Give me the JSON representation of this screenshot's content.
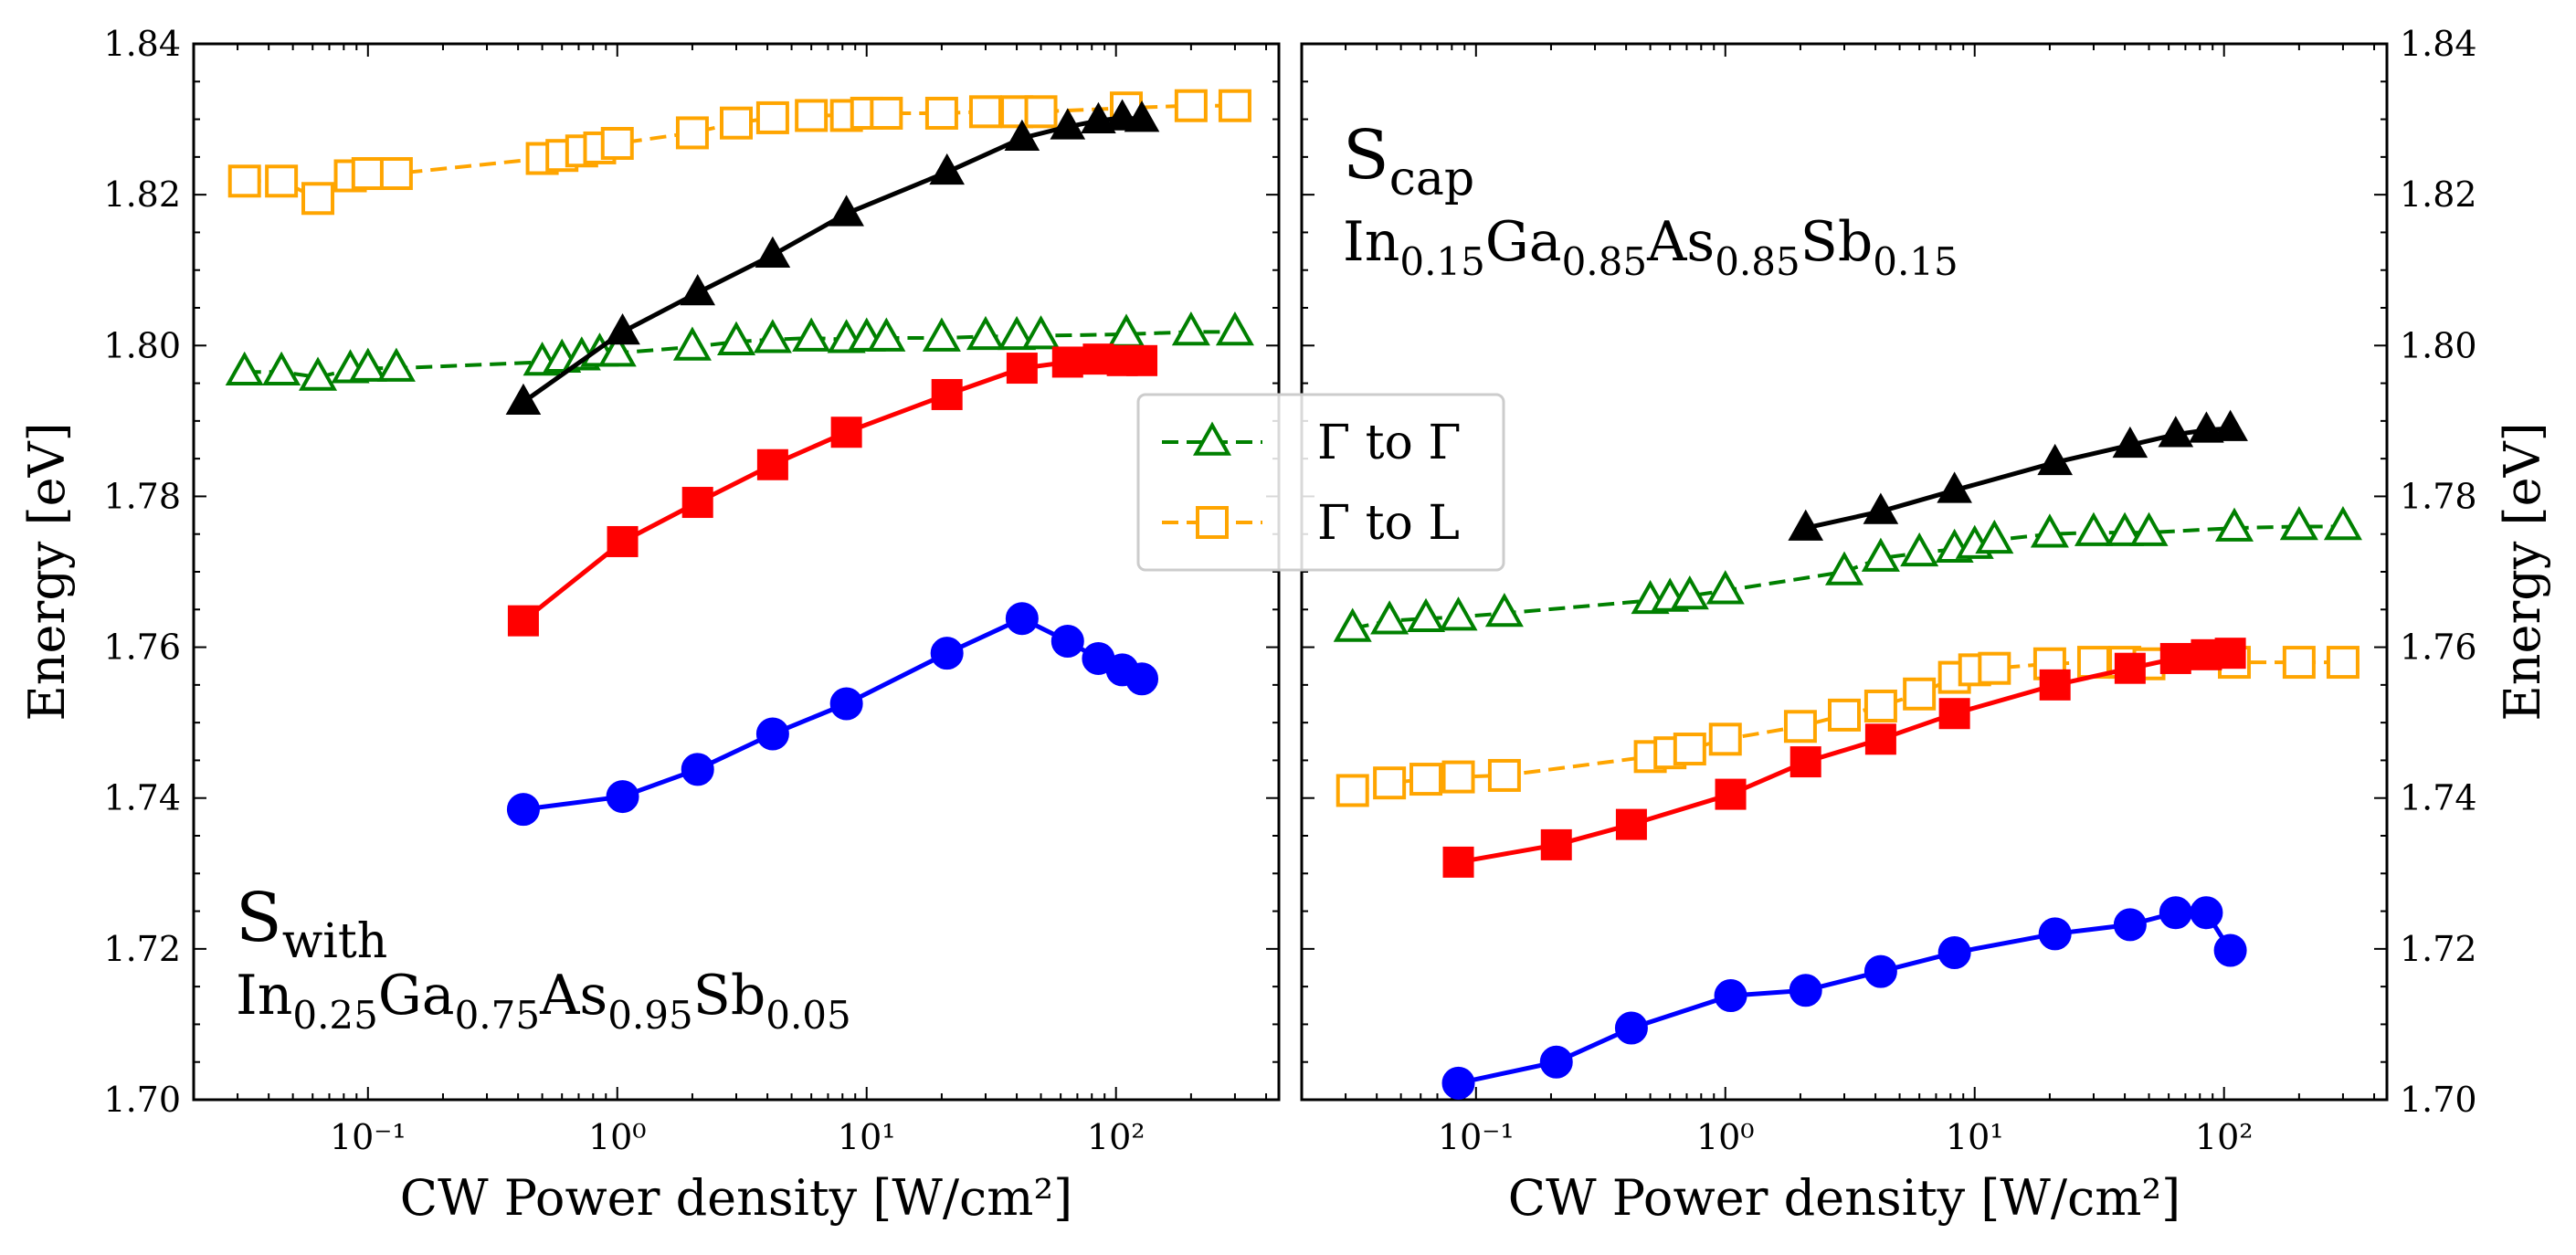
{
  "legend": {
    "entries": [
      {
        "label": "Γ to Γ",
        "color": "#008000",
        "marker": "triangle-open",
        "line": "dashed"
      },
      {
        "label": "Γ to L",
        "color": "#FFA500",
        "marker": "square-open",
        "line": "dashed"
      }
    ],
    "placement": "center"
  },
  "chart_data": [
    {
      "type": "line",
      "xscale": "log",
      "xlabel": "CW Power density [W/cm²]",
      "ylabel": "Energy [eV]",
      "xlim": [
        0.02,
        450
      ],
      "ylim": [
        1.7,
        1.84
      ],
      "yticks": [
        "1.70",
        "1.72",
        "1.74",
        "1.76",
        "1.78",
        "1.80",
        "1.82",
        "1.84"
      ],
      "xticks": [
        "10⁻¹",
        "10⁰",
        "10¹",
        "10²"
      ],
      "annotation": {
        "sample": "S",
        "sample_sub": "with",
        "composition": [
          [
            "In",
            ""
          ],
          [
            "",
            "0.25"
          ],
          [
            "Ga",
            ""
          ],
          [
            "",
            "0.75"
          ],
          [
            "As",
            ""
          ],
          [
            "",
            "0.95"
          ],
          [
            "Sb",
            ""
          ],
          [
            "",
            "0.05"
          ]
        ]
      },
      "series": [
        {
          "name": "Γ to Γ",
          "color": "#008000",
          "marker": "triangle-open",
          "line": "dashed",
          "x": [
            0.032,
            0.045,
            0.063,
            0.085,
            0.1,
            0.13,
            0.5,
            0.6,
            0.72,
            0.85,
            1.0,
            2.0,
            3.0,
            4.2,
            6.0,
            8.3,
            10,
            12,
            20,
            30,
            40,
            50,
            110,
            200,
            300
          ],
          "y": [
            1.7965,
            1.7965,
            1.7958,
            1.7968,
            1.797,
            1.797,
            1.7978,
            1.7982,
            1.7985,
            1.799,
            1.799,
            1.7998,
            1.8005,
            1.8008,
            1.801,
            1.8008,
            1.801,
            1.801,
            1.801,
            1.8012,
            1.8012,
            1.8013,
            1.8015,
            1.8018,
            1.8018
          ]
        },
        {
          "name": "Γ to L",
          "color": "#FFA500",
          "marker": "square-open",
          "line": "dashed",
          "x": [
            0.032,
            0.045,
            0.063,
            0.085,
            0.1,
            0.13,
            0.5,
            0.6,
            0.72,
            0.85,
            1.0,
            2.0,
            3.0,
            4.2,
            6.0,
            8.3,
            10,
            12,
            20,
            30,
            40,
            50,
            110,
            200,
            300
          ],
          "y": [
            1.8218,
            1.8218,
            1.8195,
            1.8225,
            1.8228,
            1.8228,
            1.8248,
            1.8252,
            1.8258,
            1.8262,
            1.8268,
            1.8282,
            1.8295,
            1.8302,
            1.8305,
            1.8305,
            1.8308,
            1.8308,
            1.8308,
            1.831,
            1.831,
            1.831,
            1.8315,
            1.8318,
            1.8318
          ]
        },
        {
          "name": "",
          "color": "#000000",
          "marker": "triangle-filled",
          "line": "solid",
          "x": [
            0.42,
            1.05,
            2.1,
            4.2,
            8.3,
            21,
            42,
            64,
            85,
            106,
            127
          ],
          "y": [
            1.7925,
            1.8018,
            1.807,
            1.812,
            1.8175,
            1.823,
            1.8275,
            1.829,
            1.8298,
            1.8302,
            1.83
          ]
        },
        {
          "name": "",
          "color": "#FF0000",
          "marker": "square-filled",
          "line": "solid",
          "x": [
            0.42,
            1.05,
            2.1,
            4.2,
            8.3,
            21,
            42,
            64,
            85,
            106,
            127
          ],
          "y": [
            1.7635,
            1.774,
            1.7792,
            1.7842,
            1.7885,
            1.7935,
            1.797,
            1.7978,
            1.7982,
            1.798,
            1.798
          ]
        },
        {
          "name": "",
          "color": "#0000FF",
          "marker": "circle-filled",
          "line": "solid",
          "x": [
            0.42,
            1.05,
            2.1,
            4.2,
            8.3,
            21,
            42,
            64,
            85,
            106,
            127
          ],
          "y": [
            1.7385,
            1.7402,
            1.7438,
            1.7485,
            1.7525,
            1.7592,
            1.7638,
            1.7608,
            1.7585,
            1.757,
            1.7558
          ]
        }
      ]
    },
    {
      "type": "line",
      "xscale": "log",
      "xlabel": "CW Power density [W/cm²]",
      "ylabel": "Energy [eV]",
      "xlim": [
        0.02,
        450
      ],
      "ylim": [
        1.7,
        1.84
      ],
      "yticks": [
        "1.70",
        "1.72",
        "1.74",
        "1.76",
        "1.78",
        "1.80",
        "1.82",
        "1.84"
      ],
      "xticks": [
        "10⁻¹",
        "10⁰",
        "10¹",
        "10²"
      ],
      "annotation": {
        "sample": "S",
        "sample_sub": "cap",
        "composition": [
          [
            "In",
            ""
          ],
          [
            "",
            "0.15"
          ],
          [
            "Ga",
            ""
          ],
          [
            "",
            "0.85"
          ],
          [
            "As",
            ""
          ],
          [
            "",
            "0.85"
          ],
          [
            "Sb",
            ""
          ],
          [
            "",
            "0.15"
          ]
        ]
      },
      "series": [
        {
          "name": "Γ to Γ",
          "color": "#008000",
          "marker": "triangle-open",
          "line": "dashed",
          "x": [
            0.032,
            0.045,
            0.063,
            0.085,
            0.13,
            0.5,
            0.6,
            0.72,
            1.0,
            3.0,
            4.2,
            6.0,
            8.3,
            10,
            12,
            20,
            30,
            40,
            50,
            110,
            200,
            300
          ],
          "y": [
            1.7625,
            1.7635,
            1.7638,
            1.764,
            1.7645,
            1.7662,
            1.7665,
            1.7668,
            1.7675,
            1.77,
            1.7718,
            1.7725,
            1.773,
            1.7735,
            1.7742,
            1.775,
            1.7752,
            1.7752,
            1.7752,
            1.7758,
            1.776,
            1.776
          ]
        },
        {
          "name": "Γ to L",
          "color": "#FFA500",
          "marker": "square-open",
          "line": "dashed",
          "x": [
            0.032,
            0.045,
            0.063,
            0.085,
            0.13,
            0.5,
            0.6,
            0.72,
            1.0,
            2.0,
            3.0,
            4.2,
            6.0,
            8.3,
            10,
            12,
            20,
            30,
            40,
            50,
            110,
            200,
            300
          ],
          "y": [
            1.741,
            1.742,
            1.7425,
            1.7428,
            1.743,
            1.7455,
            1.746,
            1.7465,
            1.7478,
            1.7495,
            1.751,
            1.7522,
            1.7538,
            1.756,
            1.757,
            1.7572,
            1.7578,
            1.758,
            1.758,
            1.7578,
            1.758,
            1.758,
            1.758
          ]
        },
        {
          "name": "",
          "color": "#000000",
          "marker": "triangle-filled",
          "line": "solid",
          "x": [
            2.1,
            4.2,
            8.3,
            21,
            42,
            64,
            85,
            106
          ],
          "y": [
            1.7758,
            1.778,
            1.7808,
            1.7845,
            1.7868,
            1.7882,
            1.7888,
            1.789
          ]
        },
        {
          "name": "",
          "color": "#FF0000",
          "marker": "square-filled",
          "line": "solid",
          "x": [
            0.085,
            0.21,
            0.42,
            1.05,
            2.1,
            4.2,
            8.3,
            21,
            42,
            64,
            85,
            106
          ],
          "y": [
            1.7315,
            1.7338,
            1.7365,
            1.7405,
            1.7448,
            1.7478,
            1.7512,
            1.755,
            1.7572,
            1.7585,
            1.759,
            1.7592
          ]
        },
        {
          "name": "",
          "color": "#0000FF",
          "marker": "circle-filled",
          "line": "solid",
          "x": [
            0.085,
            0.21,
            0.42,
            1.05,
            2.1,
            4.2,
            8.3,
            21,
            42,
            64,
            85,
            106
          ],
          "y": [
            1.7022,
            1.705,
            1.7095,
            1.7138,
            1.7145,
            1.717,
            1.7195,
            1.722,
            1.7232,
            1.7248,
            1.7248,
            1.7198
          ]
        }
      ]
    }
  ]
}
